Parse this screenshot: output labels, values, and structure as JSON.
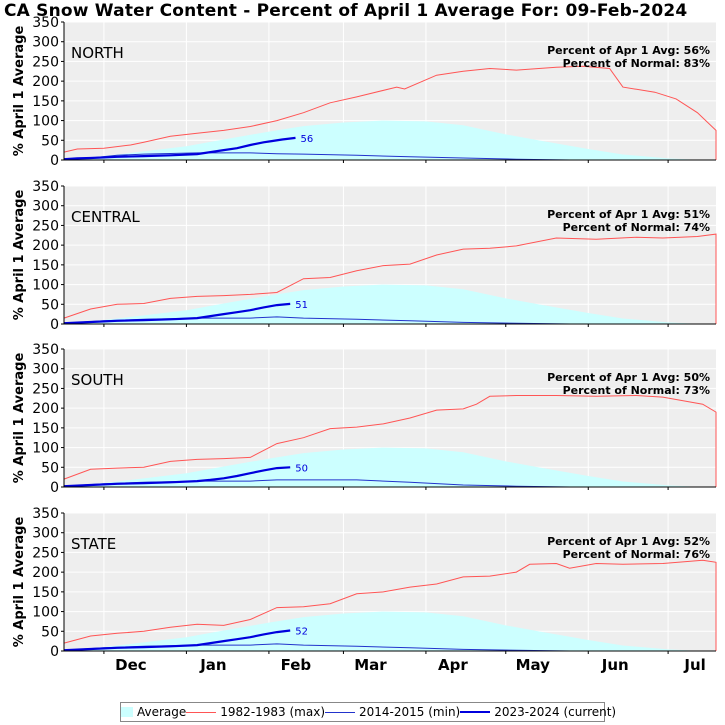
{
  "title": "CA Snow Water Content - Percent of April 1 Average For: 09-Feb-2024",
  "colors": {
    "average_fill": "#ccffff",
    "max": "#ff5555",
    "min": "#2233cc",
    "current": "#0000dd",
    "panel_bg": "#eeeeee",
    "grid": "#ffffff"
  },
  "legend": {
    "average": "Average",
    "max": "1982-1983 (max)",
    "min": "2014-2015 (min)",
    "current": "2023-2024 (current)"
  },
  "chart_data": {
    "type": "area",
    "ylabel": "% April 1 Average",
    "ylim": [
      0,
      350
    ],
    "yticks": [
      0,
      50,
      100,
      150,
      200,
      250,
      300,
      350
    ],
    "xlim": [
      0,
      245
    ],
    "x_unit_note": "",
    "xticks": [
      {
        "label": "Dec",
        "x": 15
      },
      {
        "label": "Jan",
        "x": 46
      },
      {
        "label": "Feb",
        "x": 77
      },
      {
        "label": "Mar",
        "x": 105
      },
      {
        "label": "Apr",
        "x": 136
      },
      {
        "label": "May",
        "x": 166
      },
      {
        "label": "Jun",
        "x": 197
      },
      {
        "label": "Jul",
        "x": 227
      }
    ],
    "panels": [
      {
        "name": "NORTH",
        "pct_apr1_label": "Percent of Apr 1 Avg: 56%",
        "pct_normal_label": "Percent of Normal: 83%",
        "current_label": "56",
        "average": [
          [
            0,
            2
          ],
          [
            15,
            10
          ],
          [
            30,
            22
          ],
          [
            46,
            35
          ],
          [
            60,
            52
          ],
          [
            77,
            72
          ],
          [
            90,
            86
          ],
          [
            105,
            95
          ],
          [
            120,
            100
          ],
          [
            136,
            98
          ],
          [
            150,
            88
          ],
          [
            166,
            65
          ],
          [
            180,
            48
          ],
          [
            197,
            28
          ],
          [
            210,
            14
          ],
          [
            227,
            4
          ],
          [
            240,
            0
          ]
        ],
        "max": [
          [
            0,
            20
          ],
          [
            5,
            28
          ],
          [
            15,
            30
          ],
          [
            25,
            38
          ],
          [
            30,
            45
          ],
          [
            40,
            60
          ],
          [
            50,
            68
          ],
          [
            60,
            75
          ],
          [
            70,
            85
          ],
          [
            80,
            100
          ],
          [
            90,
            120
          ],
          [
            100,
            145
          ],
          [
            110,
            160
          ],
          [
            125,
            185
          ],
          [
            128,
            180
          ],
          [
            140,
            215
          ],
          [
            150,
            225
          ],
          [
            160,
            232
          ],
          [
            170,
            228
          ],
          [
            185,
            235
          ],
          [
            195,
            238
          ],
          [
            205,
            232
          ],
          [
            210,
            185
          ],
          [
            222,
            172
          ],
          [
            230,
            155
          ],
          [
            238,
            120
          ],
          [
            245,
            75
          ],
          [
            255,
            50
          ],
          [
            265,
            30
          ],
          [
            280,
            15
          ],
          [
            300,
            0
          ]
        ],
        "min": [
          [
            0,
            2
          ],
          [
            10,
            5
          ],
          [
            20,
            12
          ],
          [
            30,
            15
          ],
          [
            50,
            18
          ],
          [
            70,
            18
          ],
          [
            80,
            16
          ],
          [
            90,
            15
          ],
          [
            110,
            12
          ],
          [
            130,
            8
          ],
          [
            150,
            5
          ],
          [
            170,
            2
          ],
          [
            190,
            0
          ]
        ],
        "current": [
          [
            0,
            2
          ],
          [
            5,
            4
          ],
          [
            10,
            5
          ],
          [
            20,
            8
          ],
          [
            30,
            10
          ],
          [
            40,
            12
          ],
          [
            50,
            15
          ],
          [
            55,
            20
          ],
          [
            60,
            25
          ],
          [
            65,
            30
          ],
          [
            70,
            38
          ],
          [
            75,
            45
          ],
          [
            78,
            48
          ],
          [
            82,
            52
          ],
          [
            87,
            56
          ]
        ]
      },
      {
        "name": "CENTRAL",
        "pct_apr1_label": "Percent of Apr 1 Avg: 51%",
        "pct_normal_label": "Percent of Normal: 74%",
        "current_label": "51",
        "average": [
          [
            0,
            2
          ],
          [
            15,
            10
          ],
          [
            30,
            22
          ],
          [
            46,
            35
          ],
          [
            60,
            52
          ],
          [
            77,
            72
          ],
          [
            90,
            86
          ],
          [
            105,
            95
          ],
          [
            120,
            100
          ],
          [
            136,
            98
          ],
          [
            150,
            88
          ],
          [
            166,
            65
          ],
          [
            180,
            48
          ],
          [
            197,
            28
          ],
          [
            210,
            14
          ],
          [
            227,
            4
          ],
          [
            240,
            0
          ]
        ],
        "max": [
          [
            0,
            15
          ],
          [
            10,
            38
          ],
          [
            20,
            50
          ],
          [
            30,
            52
          ],
          [
            40,
            65
          ],
          [
            50,
            70
          ],
          [
            60,
            72
          ],
          [
            70,
            75
          ],
          [
            80,
            80
          ],
          [
            90,
            115
          ],
          [
            100,
            118
          ],
          [
            110,
            135
          ],
          [
            120,
            148
          ],
          [
            130,
            152
          ],
          [
            140,
            175
          ],
          [
            150,
            190
          ],
          [
            160,
            192
          ],
          [
            170,
            198
          ],
          [
            185,
            218
          ],
          [
            200,
            215
          ],
          [
            215,
            220
          ],
          [
            225,
            218
          ],
          [
            238,
            222
          ],
          [
            250,
            228
          ],
          [
            265,
            210
          ],
          [
            278,
            200
          ],
          [
            290,
            175
          ],
          [
            300,
            150
          ],
          [
            315,
            128
          ],
          [
            330,
            100
          ],
          [
            345,
            80
          ],
          [
            355,
            60
          ],
          [
            370,
            30
          ],
          [
            385,
            18
          ],
          [
            400,
            0
          ]
        ],
        "min": [
          [
            0,
            2
          ],
          [
            15,
            8
          ],
          [
            30,
            12
          ],
          [
            50,
            15
          ],
          [
            70,
            15
          ],
          [
            80,
            18
          ],
          [
            90,
            15
          ],
          [
            110,
            12
          ],
          [
            130,
            8
          ],
          [
            150,
            4
          ],
          [
            170,
            2
          ],
          [
            190,
            0
          ]
        ],
        "current": [
          [
            0,
            2
          ],
          [
            10,
            5
          ],
          [
            20,
            8
          ],
          [
            30,
            10
          ],
          [
            40,
            12
          ],
          [
            50,
            15
          ],
          [
            55,
            20
          ],
          [
            60,
            25
          ],
          [
            65,
            30
          ],
          [
            70,
            35
          ],
          [
            75,
            42
          ],
          [
            80,
            48
          ],
          [
            85,
            51
          ]
        ]
      },
      {
        "name": "SOUTH",
        "pct_apr1_label": "Percent of Apr 1 Avg: 50%",
        "pct_normal_label": "Percent of Normal: 73%",
        "current_label": "50",
        "average": [
          [
            0,
            2
          ],
          [
            15,
            10
          ],
          [
            30,
            22
          ],
          [
            46,
            35
          ],
          [
            60,
            52
          ],
          [
            77,
            72
          ],
          [
            90,
            86
          ],
          [
            105,
            95
          ],
          [
            120,
            100
          ],
          [
            136,
            98
          ],
          [
            150,
            88
          ],
          [
            166,
            65
          ],
          [
            180,
            48
          ],
          [
            197,
            28
          ],
          [
            210,
            14
          ],
          [
            227,
            4
          ],
          [
            240,
            0
          ]
        ],
        "max": [
          [
            0,
            20
          ],
          [
            10,
            45
          ],
          [
            20,
            48
          ],
          [
            30,
            50
          ],
          [
            40,
            65
          ],
          [
            50,
            70
          ],
          [
            60,
            72
          ],
          [
            70,
            75
          ],
          [
            80,
            110
          ],
          [
            90,
            125
          ],
          [
            100,
            148
          ],
          [
            110,
            152
          ],
          [
            120,
            160
          ],
          [
            130,
            175
          ],
          [
            140,
            195
          ],
          [
            150,
            198
          ],
          [
            155,
            210
          ],
          [
            160,
            230
          ],
          [
            170,
            232
          ],
          [
            185,
            232
          ],
          [
            200,
            230
          ],
          [
            215,
            232
          ],
          [
            225,
            228
          ],
          [
            240,
            210
          ],
          [
            255,
            190
          ],
          [
            270,
            160
          ],
          [
            285,
            130
          ],
          [
            300,
            100
          ],
          [
            315,
            70
          ],
          [
            330,
            40
          ],
          [
            345,
            20
          ],
          [
            360,
            0
          ]
        ],
        "min": [
          [
            0,
            2
          ],
          [
            15,
            8
          ],
          [
            30,
            12
          ],
          [
            50,
            15
          ],
          [
            70,
            15
          ],
          [
            80,
            18
          ],
          [
            90,
            18
          ],
          [
            110,
            18
          ],
          [
            130,
            12
          ],
          [
            150,
            5
          ],
          [
            170,
            2
          ],
          [
            190,
            0
          ]
        ],
        "current": [
          [
            0,
            2
          ],
          [
            10,
            5
          ],
          [
            20,
            8
          ],
          [
            30,
            10
          ],
          [
            40,
            12
          ],
          [
            50,
            15
          ],
          [
            55,
            18
          ],
          [
            60,
            22
          ],
          [
            65,
            28
          ],
          [
            70,
            35
          ],
          [
            75,
            42
          ],
          [
            80,
            48
          ],
          [
            85,
            50
          ]
        ]
      },
      {
        "name": "STATE",
        "pct_apr1_label": "Percent of Apr 1 Avg: 52%",
        "pct_normal_label": "Percent of Normal: 76%",
        "current_label": "52",
        "average": [
          [
            0,
            2
          ],
          [
            15,
            10
          ],
          [
            30,
            22
          ],
          [
            46,
            35
          ],
          [
            60,
            52
          ],
          [
            77,
            72
          ],
          [
            90,
            86
          ],
          [
            105,
            95
          ],
          [
            120,
            100
          ],
          [
            136,
            98
          ],
          [
            150,
            88
          ],
          [
            166,
            65
          ],
          [
            180,
            48
          ],
          [
            197,
            28
          ],
          [
            210,
            14
          ],
          [
            227,
            4
          ],
          [
            240,
            0
          ]
        ],
        "max": [
          [
            0,
            20
          ],
          [
            10,
            38
          ],
          [
            20,
            45
          ],
          [
            30,
            50
          ],
          [
            40,
            60
          ],
          [
            50,
            68
          ],
          [
            60,
            65
          ],
          [
            70,
            80
          ],
          [
            80,
            110
          ],
          [
            90,
            112
          ],
          [
            100,
            120
          ],
          [
            110,
            145
          ],
          [
            120,
            150
          ],
          [
            130,
            162
          ],
          [
            140,
            170
          ],
          [
            150,
            188
          ],
          [
            160,
            190
          ],
          [
            170,
            200
          ],
          [
            175,
            220
          ],
          [
            185,
            222
          ],
          [
            190,
            210
          ],
          [
            200,
            222
          ],
          [
            210,
            220
          ],
          [
            225,
            222
          ],
          [
            240,
            230
          ],
          [
            250,
            225
          ],
          [
            260,
            210
          ],
          [
            270,
            185
          ],
          [
            280,
            165
          ],
          [
            290,
            140
          ],
          [
            300,
            120
          ],
          [
            310,
            90
          ],
          [
            320,
            70
          ],
          [
            330,
            50
          ],
          [
            340,
            30
          ],
          [
            350,
            15
          ],
          [
            365,
            0
          ]
        ],
        "min": [
          [
            0,
            2
          ],
          [
            15,
            8
          ],
          [
            30,
            12
          ],
          [
            50,
            15
          ],
          [
            70,
            15
          ],
          [
            80,
            18
          ],
          [
            90,
            15
          ],
          [
            110,
            12
          ],
          [
            130,
            8
          ],
          [
            150,
            4
          ],
          [
            170,
            2
          ],
          [
            190,
            0
          ]
        ],
        "current": [
          [
            0,
            2
          ],
          [
            10,
            5
          ],
          [
            20,
            8
          ],
          [
            30,
            10
          ],
          [
            40,
            12
          ],
          [
            50,
            15
          ],
          [
            55,
            20
          ],
          [
            60,
            25
          ],
          [
            65,
            30
          ],
          [
            70,
            35
          ],
          [
            75,
            42
          ],
          [
            80,
            48
          ],
          [
            85,
            52
          ]
        ]
      }
    ]
  }
}
